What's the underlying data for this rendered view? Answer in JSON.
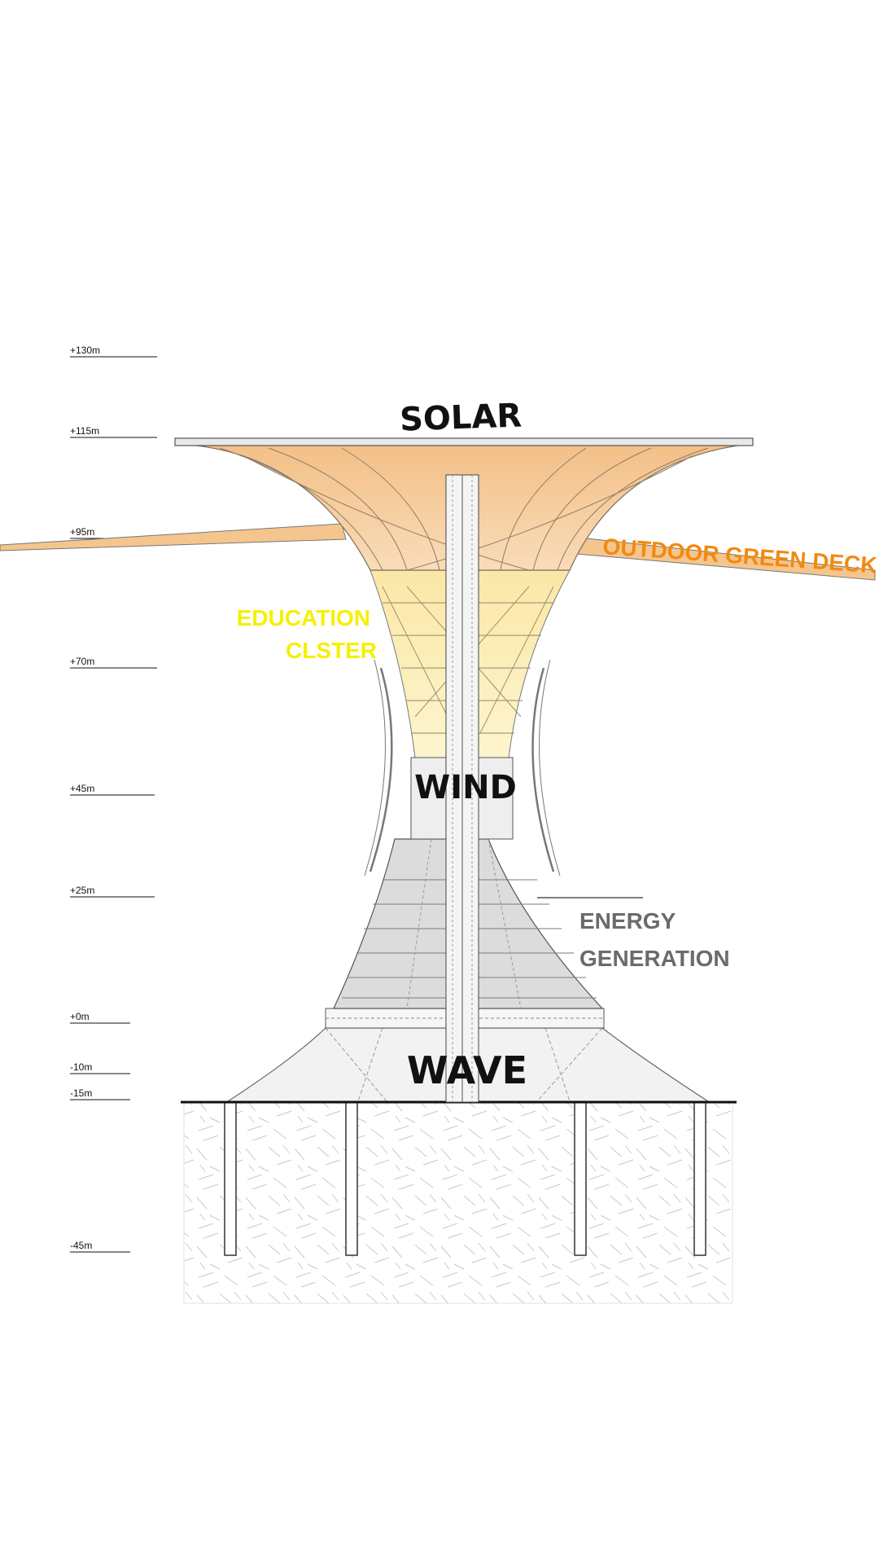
{
  "levels": [
    {
      "label": "+130m",
      "elevation": 130
    },
    {
      "label": "+115m",
      "elevation": 115
    },
    {
      "label": "+95m",
      "elevation": 95
    },
    {
      "label": "+70m",
      "elevation": 70
    },
    {
      "label": "+45m",
      "elevation": 45
    },
    {
      "label": "+25m",
      "elevation": 25
    },
    {
      "label": "+0m",
      "elevation": 0
    },
    {
      "label": "-10m",
      "elevation": -10
    },
    {
      "label": "-15m",
      "elevation": -15
    },
    {
      "label": "-45m",
      "elevation": -45
    }
  ],
  "labels": {
    "solar": "SOLAR",
    "outdoor_green_deck": "OUTDOOR GREEN DECK",
    "education_line1": "EDUCATION",
    "education_line2": "CLSTER",
    "wind": "WIND",
    "energy_line1": "ENERGY",
    "energy_line2": "GENERATION",
    "wave": "WAVE"
  },
  "colors": {
    "solar_orange": "#f6c996",
    "deck_orange": "#f28a10",
    "education_yellow": "#f5f000",
    "education_fill": "#fbf0b0",
    "energy_grey": "#6b6b6b",
    "ground_line": "#111111"
  }
}
